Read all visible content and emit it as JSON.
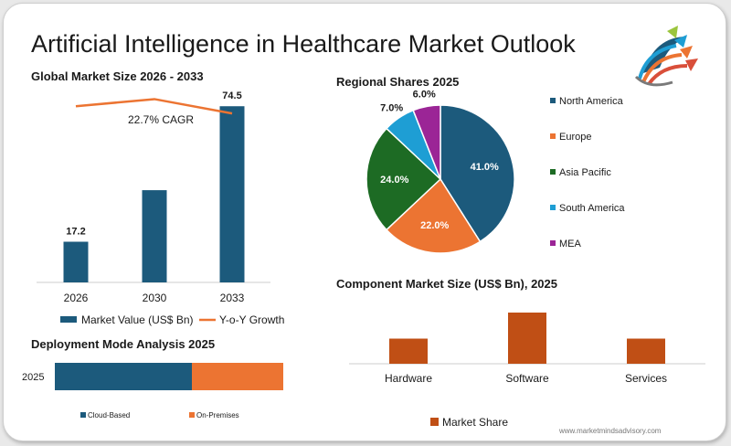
{
  "title": "Artificial Intelligence in Healthcare Market Outlook",
  "watermark": "www.marketmindsadvisory.com",
  "colors": {
    "navy": "#1c5a7c",
    "orange": "#ec7432",
    "green": "#1d6b24",
    "sky": "#1e9ed4",
    "purple": "#9b2596",
    "rust": "#c04f15"
  },
  "chart_data": [
    {
      "type": "bar",
      "title": "Global Market Size 2026 - 2033",
      "categories": [
        "2026",
        "2030",
        "2033"
      ],
      "series": [
        {
          "name": "Market Value (US$ Bn)",
          "values": [
            17.2,
            39.0,
            74.5
          ],
          "data_labels": [
            "17.2",
            "",
            "74.5"
          ]
        },
        {
          "name": "Y-o-Y Growth",
          "type": "line",
          "values": [
            17.2,
            17.9,
            16.5
          ]
        }
      ],
      "annotations": [
        "22.7% CAGR"
      ],
      "ylim": [
        0,
        80
      ],
      "legend": "bottom",
      "grid": false
    },
    {
      "type": "pie",
      "title": "Regional Shares 2025",
      "labels": [
        "North America",
        "Europe",
        "Asia Pacific",
        "South America",
        "MEA"
      ],
      "values": [
        41.0,
        22.0,
        24.0,
        7.0,
        6.0
      ],
      "data_labels": [
        "41.0%",
        "22.0%",
        "24.0%",
        "7.0%",
        "6.0%"
      ],
      "legend": "right"
    },
    {
      "type": "bar",
      "title": "Component Market Size (US$ Bn), 2025",
      "categories": [
        "Hardware",
        "Software",
        "Services"
      ],
      "series": [
        {
          "name": "Market Share",
          "values": [
            27,
            55,
            27
          ]
        }
      ],
      "ylim": [
        0,
        60
      ],
      "legend": "bottom",
      "grid": false
    },
    {
      "type": "bar",
      "orientation": "horizontal-stacked",
      "title": "Deployment Mode Analysis 2025",
      "categories": [
        "2025"
      ],
      "series": [
        {
          "name": "Cloud-Based",
          "values": [
            60
          ]
        },
        {
          "name": "On-Premises",
          "values": [
            40
          ]
        }
      ],
      "xlim": [
        0,
        100
      ],
      "legend": "bottom",
      "grid": false
    }
  ]
}
